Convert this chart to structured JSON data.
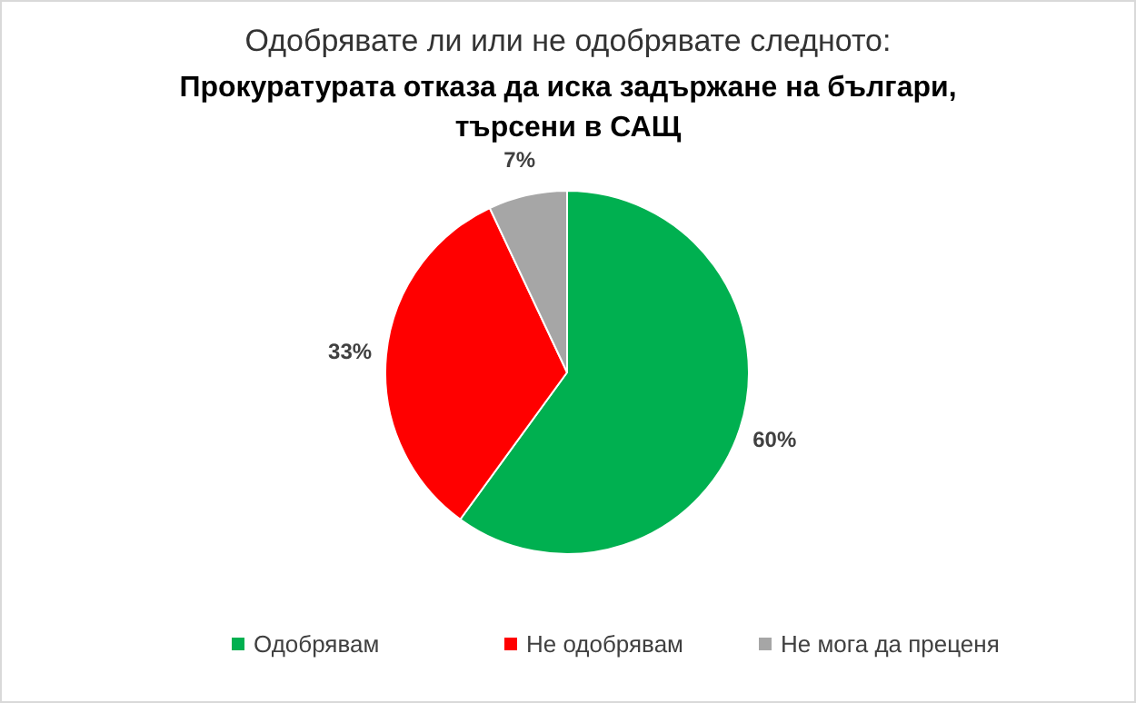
{
  "chart_data": {
    "type": "pie",
    "title": "Одобрявате ли или не одобрявате следното:",
    "subtitle": "Прокуратурата отказа да иска задържане на българи, търсени в САЩ",
    "categories": [
      "Одобрявам",
      "Не одобрявам",
      "Не мога да преценя"
    ],
    "values": [
      60,
      33,
      7
    ],
    "colors": [
      "#00b050",
      "#ff0000",
      "#a6a6a6"
    ],
    "value_labels": [
      "60%",
      "33%",
      "7%"
    ],
    "legend": "bottom"
  }
}
